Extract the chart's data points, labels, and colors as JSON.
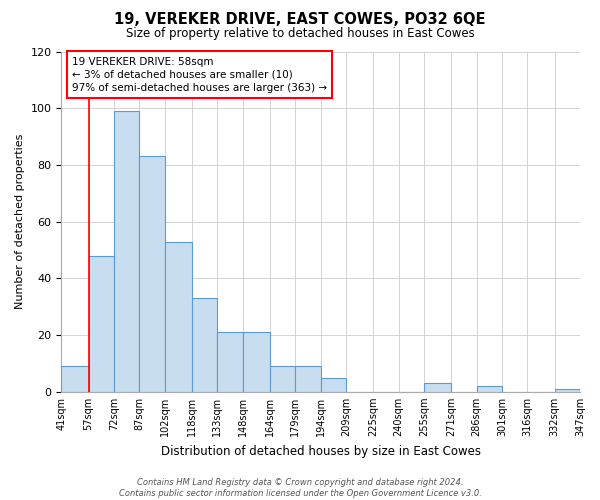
{
  "title": "19, VEREKER DRIVE, EAST COWES, PO32 6QE",
  "subtitle": "Size of property relative to detached houses in East Cowes",
  "xlabel": "Distribution of detached houses by size in East Cowes",
  "ylabel": "Number of detached properties",
  "bar_color": "#c8ddf0",
  "bar_edge_color": "#5b9bd5",
  "bar_left_edges": [
    41,
    57,
    72,
    87,
    102,
    118,
    133,
    148,
    164,
    179,
    194,
    209,
    225,
    240,
    255,
    271,
    286,
    301,
    316,
    332
  ],
  "bar_widths": [
    16,
    15,
    15,
    15,
    16,
    15,
    15,
    16,
    15,
    15,
    15,
    16,
    15,
    15,
    16,
    15,
    15,
    15,
    16,
    15
  ],
  "bar_heights": [
    9,
    48,
    99,
    83,
    53,
    33,
    21,
    21,
    9,
    9,
    5,
    0,
    0,
    0,
    3,
    0,
    2,
    0,
    0,
    1
  ],
  "tick_labels": [
    "41sqm",
    "57sqm",
    "72sqm",
    "87sqm",
    "102sqm",
    "118sqm",
    "133sqm",
    "148sqm",
    "164sqm",
    "179sqm",
    "194sqm",
    "209sqm",
    "225sqm",
    "240sqm",
    "255sqm",
    "271sqm",
    "286sqm",
    "301sqm",
    "316sqm",
    "332sqm",
    "347sqm"
  ],
  "tick_positions": [
    41,
    57,
    72,
    87,
    102,
    118,
    133,
    148,
    164,
    179,
    194,
    209,
    225,
    240,
    255,
    271,
    286,
    301,
    316,
    332,
    347
  ],
  "ylim": [
    0,
    120
  ],
  "yticks": [
    0,
    20,
    40,
    60,
    80,
    100,
    120
  ],
  "xlim": [
    41,
    347
  ],
  "red_line_x": 57,
  "annotation_line1": "19 VEREKER DRIVE: 58sqm",
  "annotation_line2": "← 3% of detached houses are smaller (10)",
  "annotation_line3": "97% of semi-detached houses are larger (363) →",
  "footnote": "Contains HM Land Registry data © Crown copyright and database right 2024.\nContains public sector information licensed under the Open Government Licence v3.0.",
  "background_color": "#ffffff",
  "grid_color": "#cccccc"
}
